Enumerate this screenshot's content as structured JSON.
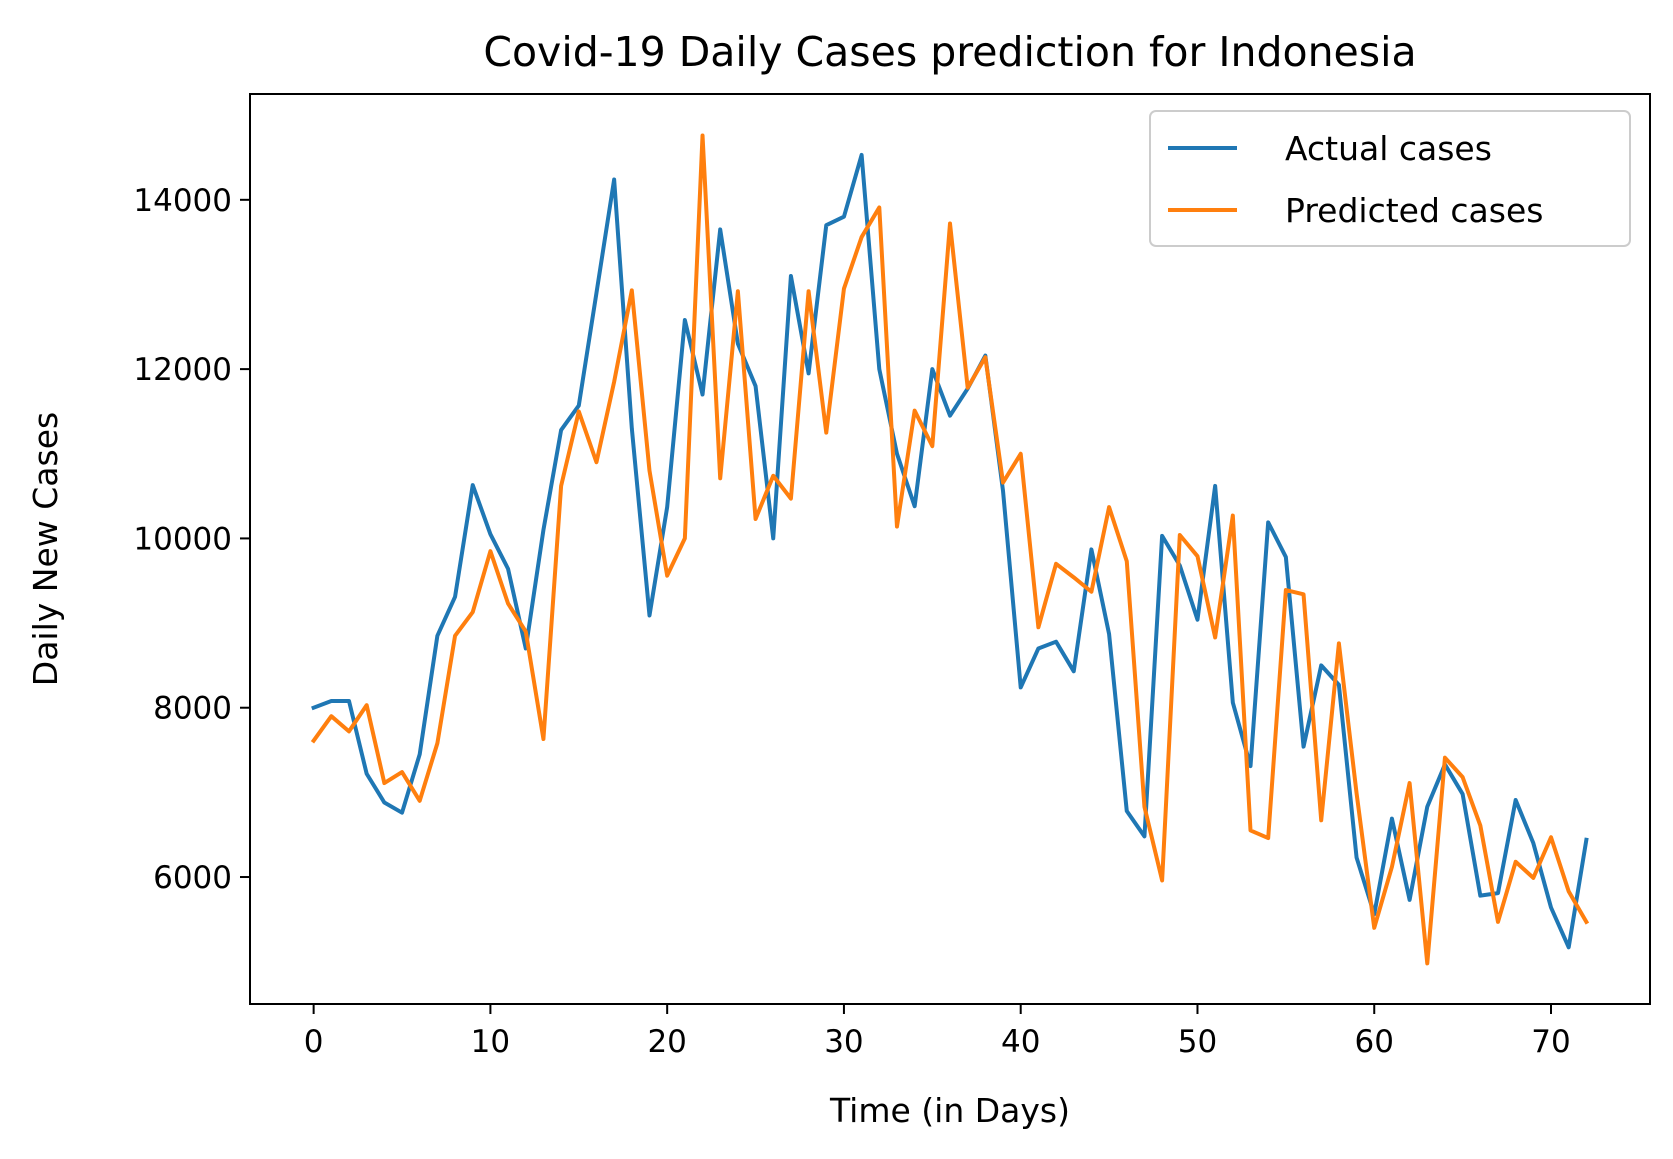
{
  "chart_data": {
    "type": "line",
    "title": "Covid-19 Daily Cases prediction for Indonesia",
    "xlabel": "Time (in Days)",
    "ylabel": "Daily New Cases",
    "xlim": [
      -3.6,
      75.6
    ],
    "ylim": [
      4500,
      15250
    ],
    "xticks": [
      0,
      10,
      20,
      30,
      40,
      50,
      60,
      70
    ],
    "yticks": [
      6000,
      8000,
      10000,
      12000,
      14000
    ],
    "grid": false,
    "legend_position": "top-right",
    "series": [
      {
        "name": "Actual cases",
        "color": "#1f77b4",
        "values": [
          8000,
          8080,
          8080,
          7220,
          6880,
          6760,
          7450,
          8850,
          9310,
          10630,
          10050,
          9640,
          8700,
          10100,
          11280,
          11570,
          12900,
          14240,
          11300,
          9090,
          10370,
          12580,
          11700,
          13650,
          12300,
          11800,
          10000,
          13100,
          11950,
          13700,
          13800,
          14530,
          12000,
          11000,
          10380,
          12000,
          11450,
          11770,
          12160,
          10560,
          8240,
          8700,
          8780,
          8430,
          9870,
          8870,
          6780,
          6480,
          10030,
          9680,
          9040,
          10620,
          8060,
          7310,
          10190,
          9780,
          7540,
          8500,
          8270,
          6230,
          5560,
          6690,
          5730,
          6830,
          7330,
          6980,
          5780,
          5810,
          6910,
          6400,
          5640,
          5170,
          6440
        ]
      },
      {
        "name": "Predicted cases",
        "color": "#ff7f0e",
        "values": [
          7610,
          7900,
          7720,
          8030,
          7110,
          7240,
          6900,
          7580,
          8850,
          9130,
          9850,
          9230,
          8900,
          7630,
          10620,
          11500,
          10900,
          11850,
          12930,
          10800,
          9560,
          10000,
          14760,
          10710,
          12920,
          10230,
          10740,
          10470,
          12920,
          11250,
          12950,
          13560,
          13910,
          10140,
          11510,
          11090,
          13720,
          11780,
          12140,
          10660,
          11000,
          8950,
          9700,
          9540,
          9370,
          10370,
          9730,
          6830,
          5960,
          10040,
          9790,
          8830,
          10270,
          6550,
          6460,
          9390,
          9340,
          6670,
          8760,
          6990,
          5400,
          6120,
          7110,
          4980,
          7410,
          7180,
          6610,
          5470,
          6180,
          5990,
          6470,
          5830,
          5470
        ]
      }
    ]
  }
}
